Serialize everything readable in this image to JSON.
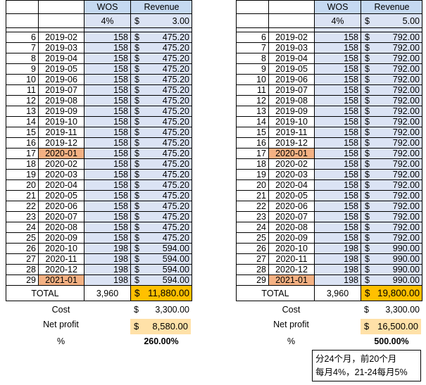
{
  "tables": [
    {
      "id": "left",
      "header": {
        "wos": "WOS",
        "revenue": "Revenue"
      },
      "rate": {
        "wos_pct": "4%",
        "currency": "$",
        "price": "3.00"
      },
      "rows": [
        {
          "n": "6",
          "month": "2019-02",
          "wos": "158",
          "rev": "475.20",
          "hl": false
        },
        {
          "n": "7",
          "month": "2019-03",
          "wos": "158",
          "rev": "475.20",
          "hl": false
        },
        {
          "n": "8",
          "month": "2019-04",
          "wos": "158",
          "rev": "475.20",
          "hl": false
        },
        {
          "n": "9",
          "month": "2019-05",
          "wos": "158",
          "rev": "475.20",
          "hl": false
        },
        {
          "n": "10",
          "month": "2019-06",
          "wos": "158",
          "rev": "475.20",
          "hl": false
        },
        {
          "n": "11",
          "month": "2019-07",
          "wos": "158",
          "rev": "475.20",
          "hl": false
        },
        {
          "n": "12",
          "month": "2019-08",
          "wos": "158",
          "rev": "475.20",
          "hl": false
        },
        {
          "n": "13",
          "month": "2019-09",
          "wos": "158",
          "rev": "475.20",
          "hl": false
        },
        {
          "n": "14",
          "month": "2019-10",
          "wos": "158",
          "rev": "475.20",
          "hl": false
        },
        {
          "n": "15",
          "month": "2019-11",
          "wos": "158",
          "rev": "475.20",
          "hl": false
        },
        {
          "n": "16",
          "month": "2019-12",
          "wos": "158",
          "rev": "475.20",
          "hl": false
        },
        {
          "n": "17",
          "month": "2020-01",
          "wos": "158",
          "rev": "475.20",
          "hl": true
        },
        {
          "n": "18",
          "month": "2020-02",
          "wos": "158",
          "rev": "475.20",
          "hl": false
        },
        {
          "n": "19",
          "month": "2020-03",
          "wos": "158",
          "rev": "475.20",
          "hl": false
        },
        {
          "n": "20",
          "month": "2020-04",
          "wos": "158",
          "rev": "475.20",
          "hl": false
        },
        {
          "n": "21",
          "month": "2020-05",
          "wos": "158",
          "rev": "475.20",
          "hl": false
        },
        {
          "n": "22",
          "month": "2020-06",
          "wos": "158",
          "rev": "475.20",
          "hl": false
        },
        {
          "n": "23",
          "month": "2020-07",
          "wos": "158",
          "rev": "475.20",
          "hl": false
        },
        {
          "n": "24",
          "month": "2020-08",
          "wos": "158",
          "rev": "475.20",
          "hl": false
        },
        {
          "n": "25",
          "month": "2020-09",
          "wos": "158",
          "rev": "475.20",
          "hl": false
        },
        {
          "n": "26",
          "month": "2020-10",
          "wos": "198",
          "rev": "594.00",
          "hl": false
        },
        {
          "n": "27",
          "month": "2020-11",
          "wos": "198",
          "rev": "594.00",
          "hl": false
        },
        {
          "n": "28",
          "month": "2020-12",
          "wos": "198",
          "rev": "594.00",
          "hl": false
        },
        {
          "n": "29",
          "month": "2021-01",
          "wos": "198",
          "rev": "594.00",
          "hl": true
        }
      ],
      "total": {
        "label": "TOTAL",
        "wos": "3,960",
        "currency": "$",
        "revenue": "11,880.00"
      },
      "cost": {
        "label": "Cost",
        "currency": "$",
        "value": "3,300.00"
      },
      "net": {
        "label": "Net profit",
        "currency": "$",
        "value": "8,580.00"
      },
      "pct": {
        "label": "%",
        "value": "260.00%"
      }
    },
    {
      "id": "right",
      "header": {
        "wos": "WOS",
        "revenue": "Revenue"
      },
      "rate": {
        "wos_pct": "4%",
        "currency": "$",
        "price": "5.00"
      },
      "rows": [
        {
          "n": "6",
          "month": "2019-02",
          "wos": "158",
          "rev": "792.00",
          "hl": false
        },
        {
          "n": "7",
          "month": "2019-03",
          "wos": "158",
          "rev": "792.00",
          "hl": false
        },
        {
          "n": "8",
          "month": "2019-04",
          "wos": "158",
          "rev": "792.00",
          "hl": false
        },
        {
          "n": "9",
          "month": "2019-05",
          "wos": "158",
          "rev": "792.00",
          "hl": false
        },
        {
          "n": "10",
          "month": "2019-06",
          "wos": "158",
          "rev": "792.00",
          "hl": false
        },
        {
          "n": "11",
          "month": "2019-07",
          "wos": "158",
          "rev": "792.00",
          "hl": false
        },
        {
          "n": "12",
          "month": "2019-08",
          "wos": "158",
          "rev": "792.00",
          "hl": false
        },
        {
          "n": "13",
          "month": "2019-09",
          "wos": "158",
          "rev": "792.00",
          "hl": false
        },
        {
          "n": "14",
          "month": "2019-10",
          "wos": "158",
          "rev": "792.00",
          "hl": false
        },
        {
          "n": "15",
          "month": "2019-11",
          "wos": "158",
          "rev": "792.00",
          "hl": false
        },
        {
          "n": "16",
          "month": "2019-12",
          "wos": "158",
          "rev": "792.00",
          "hl": false
        },
        {
          "n": "17",
          "month": "2020-01",
          "wos": "158",
          "rev": "792.00",
          "hl": true
        },
        {
          "n": "18",
          "month": "2020-02",
          "wos": "158",
          "rev": "792.00",
          "hl": false
        },
        {
          "n": "19",
          "month": "2020-03",
          "wos": "158",
          "rev": "792.00",
          "hl": false
        },
        {
          "n": "20",
          "month": "2020-04",
          "wos": "158",
          "rev": "792.00",
          "hl": false
        },
        {
          "n": "21",
          "month": "2020-05",
          "wos": "158",
          "rev": "792.00",
          "hl": false
        },
        {
          "n": "22",
          "month": "2020-06",
          "wos": "158",
          "rev": "792.00",
          "hl": false
        },
        {
          "n": "23",
          "month": "2020-07",
          "wos": "158",
          "rev": "792.00",
          "hl": false
        },
        {
          "n": "24",
          "month": "2020-08",
          "wos": "158",
          "rev": "792.00",
          "hl": false
        },
        {
          "n": "25",
          "month": "2020-09",
          "wos": "158",
          "rev": "792.00",
          "hl": false
        },
        {
          "n": "26",
          "month": "2020-10",
          "wos": "198",
          "rev": "990.00",
          "hl": false
        },
        {
          "n": "27",
          "month": "2020-11",
          "wos": "198",
          "rev": "990.00",
          "hl": false
        },
        {
          "n": "28",
          "month": "2020-12",
          "wos": "198",
          "rev": "990.00",
          "hl": false
        },
        {
          "n": "29",
          "month": "2021-01",
          "wos": "198",
          "rev": "990.00",
          "hl": true
        }
      ],
      "total": {
        "label": "TOTAL",
        "wos": "3,960",
        "currency": "$",
        "revenue": "19,800.00"
      },
      "cost": {
        "label": "Cost",
        "currency": "$",
        "value": "3,300.00"
      },
      "net": {
        "label": "Net profit",
        "currency": "$",
        "value": "16,500.00"
      },
      "pct": {
        "label": "%",
        "value": "500.00%"
      }
    }
  ],
  "note": {
    "line1": "分24个月，前20个月",
    "line2": "每月4%，21-24每月5%"
  },
  "colors": {
    "wos_fill": "#dbe3f4",
    "header_fill": "#c5d9f1",
    "highlight": "#f4b183",
    "total_fill": "#ffc000",
    "net_fill": "#ffe1a8"
  }
}
